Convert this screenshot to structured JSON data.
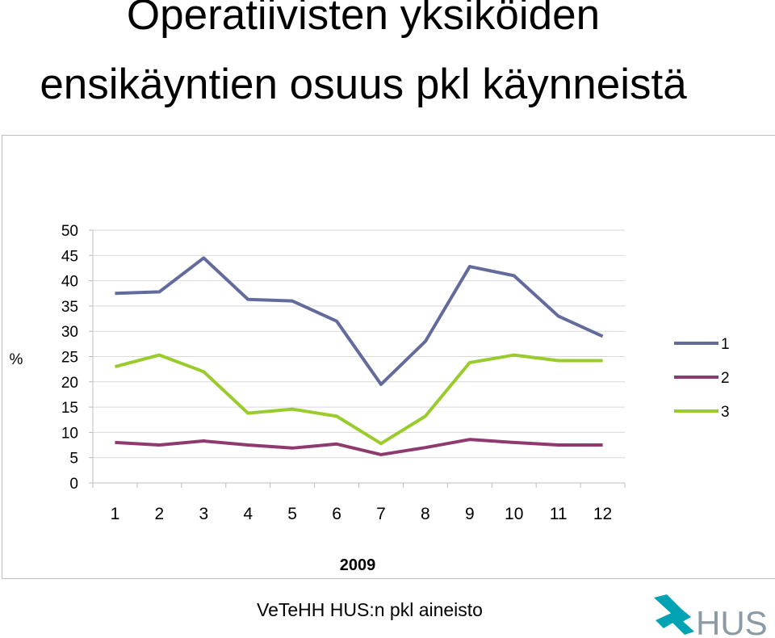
{
  "title": {
    "line1": "Operatiivisten yksiköiden",
    "line2": "ensikäyntien osuus pkl käynneistä"
  },
  "chart_data": {
    "type": "line",
    "categories": [
      "1",
      "2",
      "3",
      "4",
      "5",
      "6",
      "7",
      "8",
      "9",
      "10",
      "11",
      "12"
    ],
    "series": [
      {
        "name": "1",
        "color": "#636b9c",
        "values": [
          37.5,
          37.8,
          44.5,
          36.3,
          36,
          32,
          19.5,
          28,
          42.8,
          41,
          33,
          29
        ]
      },
      {
        "name": "2",
        "color": "#8e3a6e",
        "values": [
          8,
          7.5,
          8.3,
          7.5,
          6.9,
          7.7,
          5.6,
          7,
          8.6,
          8,
          7.5,
          7.5
        ]
      },
      {
        "name": "3",
        "color": "#9acb2c",
        "values": [
          23,
          25.3,
          22,
          13.8,
          14.6,
          13.2,
          7.8,
          13.2,
          23.8,
          25.3,
          24.2,
          24.2
        ]
      }
    ],
    "ylabel": "%",
    "xlabel": "2009",
    "ylim": [
      0,
      50
    ],
    "yticks": [
      "0",
      "5",
      "10",
      "15",
      "20",
      "25",
      "30",
      "35",
      "40",
      "45",
      "50"
    ],
    "grid": true,
    "legend_position": "right"
  },
  "footer": {
    "source": "VeTeHH HUS:n pkl aineisto",
    "logo_text": "HUS",
    "logo_colors": {
      "cross": "#00a3b4",
      "text": "#8c9aa3"
    }
  }
}
